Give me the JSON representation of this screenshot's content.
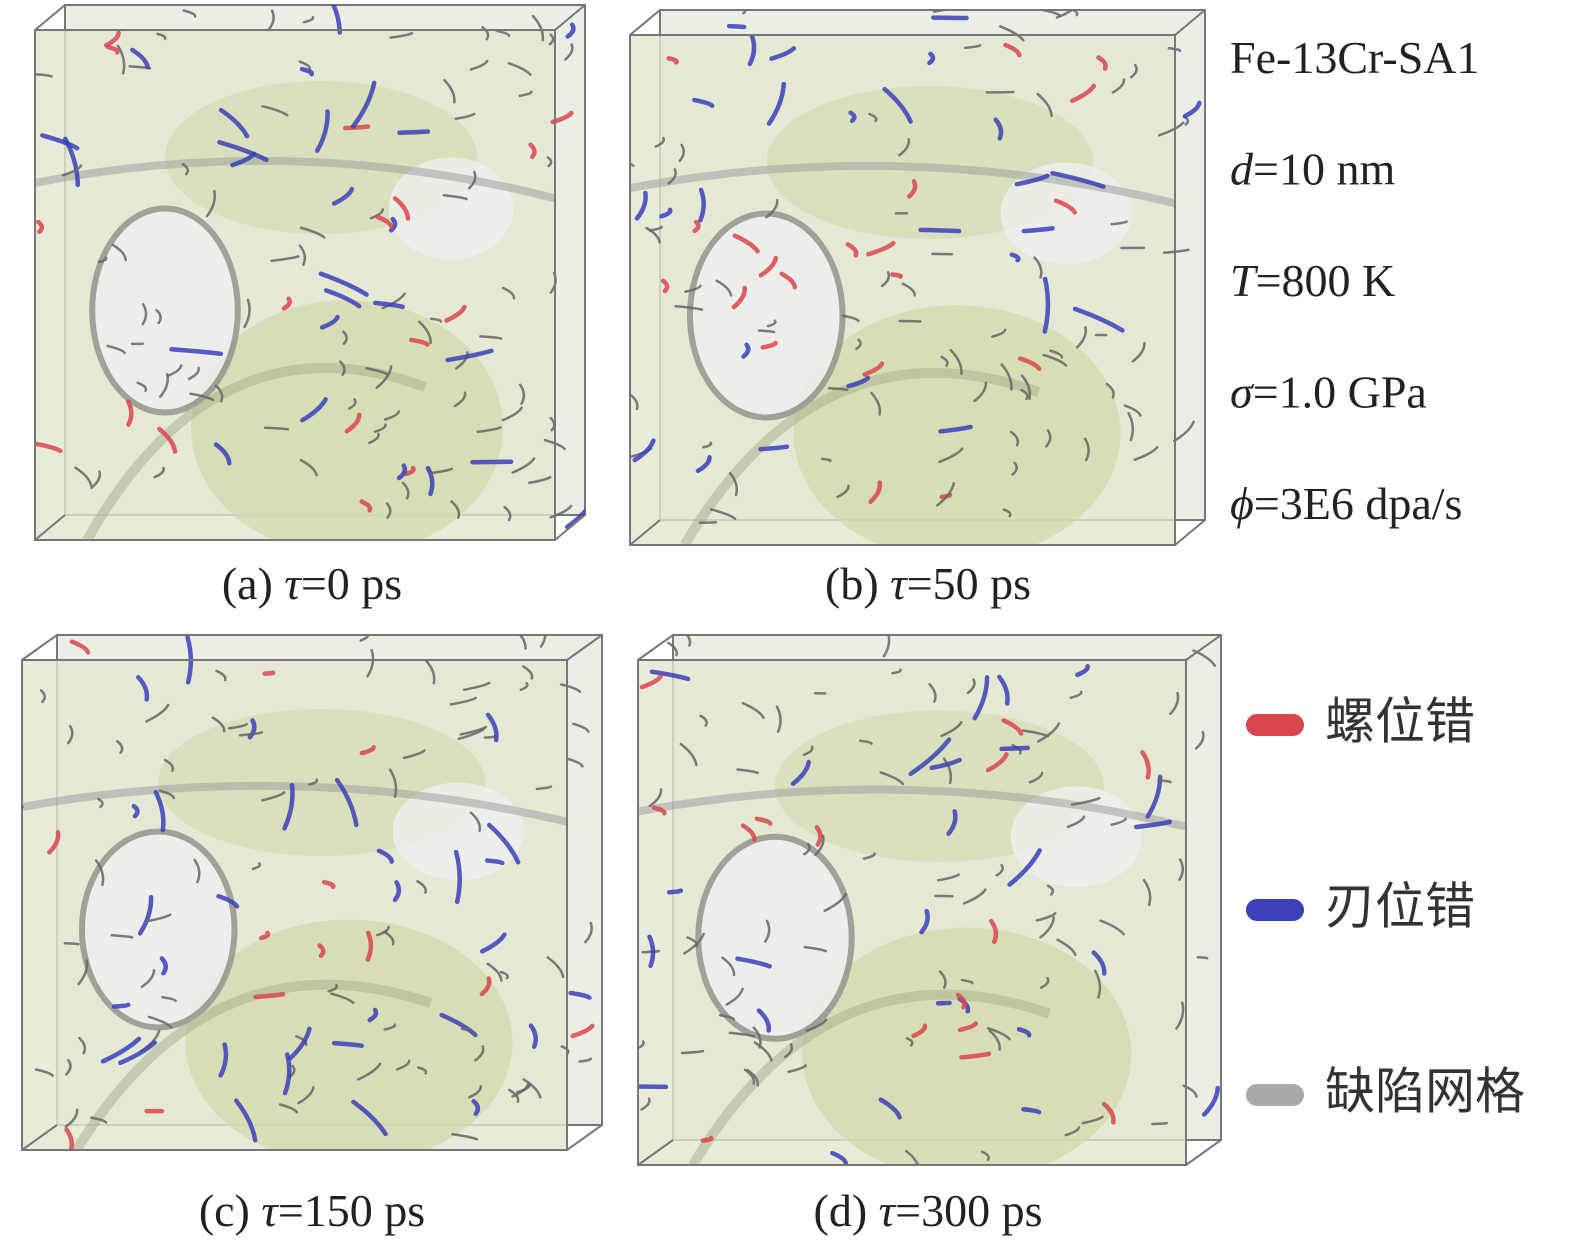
{
  "panels": [
    {
      "caption": {
        "label": "(a) ",
        "symbol": "τ",
        "value": "=0 ps"
      }
    },
    {
      "caption": {
        "label": "(b) ",
        "symbol": "τ",
        "value": "=50 ps"
      }
    },
    {
      "caption": {
        "label": "(c) ",
        "symbol": "τ",
        "value": "=150 ps"
      }
    },
    {
      "caption": {
        "label": "(d) ",
        "symbol": "τ",
        "value": "=300 ps"
      }
    }
  ],
  "parameters": [
    {
      "text": "Fe-13Cr-SA1"
    },
    {
      "symbol": "d",
      "text": "=10 nm"
    },
    {
      "symbol": "T",
      "text": "=800 K"
    },
    {
      "symbol": "σ",
      "text": "=1.0 GPa"
    },
    {
      "symbol": "ϕ",
      "text": "=3E6 dpa/s"
    }
  ],
  "legend": [
    {
      "label": "螺位错",
      "color": "#d9464f"
    },
    {
      "label": "刃位错",
      "color": "#3b3fb8"
    },
    {
      "label": "缺陷网格",
      "color": "#a9a9a9"
    }
  ]
}
